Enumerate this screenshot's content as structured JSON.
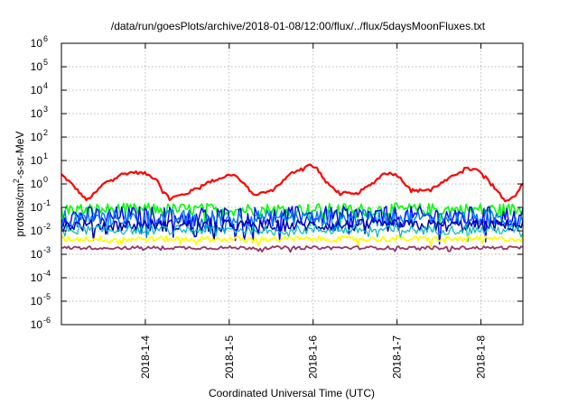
{
  "chart_data": {
    "type": "line",
    "title": "/data/run/goesPlots/archive/2018-01-08/12:00/flux/../flux/5daysMoonFluxes.txt",
    "xlabel": "Coordinated Universal Time (UTC)",
    "ylabel_parts": [
      "protons/cm",
      "2",
      "-s-sr-MeV"
    ],
    "y_scale": "log",
    "ylim_exponent": [
      -6,
      6
    ],
    "y_tick_exponents": [
      -6,
      -5,
      -4,
      -3,
      -2,
      -1,
      0,
      1,
      2,
      3,
      4,
      5,
      6
    ],
    "y_tick_base": "10",
    "xlim_days": [
      0,
      5.5
    ],
    "x_ticks": [
      {
        "day": 1,
        "label": "2018-1-4"
      },
      {
        "day": 2,
        "label": "2018-1-5"
      },
      {
        "day": 3,
        "label": "2018-1-6"
      },
      {
        "day": 4,
        "label": "2018-1-7"
      },
      {
        "day": 5,
        "label": "2018-1-8"
      }
    ],
    "grid": true,
    "series": [
      {
        "color": "#ff0000",
        "width": 2.2,
        "noise": 0.06,
        "points": [
          [
            0,
            2.5
          ],
          [
            0.1,
            1.2
          ],
          [
            0.2,
            0.5
          ],
          [
            0.3,
            0.2
          ],
          [
            0.4,
            0.4
          ],
          [
            0.5,
            1.0
          ],
          [
            0.7,
            2.5
          ],
          [
            0.85,
            3.2
          ],
          [
            1.0,
            2.8
          ],
          [
            1.15,
            1.5
          ],
          [
            1.2,
            0.5
          ],
          [
            1.3,
            0.25
          ],
          [
            1.5,
            0.4
          ],
          [
            1.7,
            1.0
          ],
          [
            1.9,
            1.8
          ],
          [
            2.05,
            2.8
          ],
          [
            2.15,
            1.2
          ],
          [
            2.3,
            0.35
          ],
          [
            2.5,
            0.5
          ],
          [
            2.6,
            1.0
          ],
          [
            2.75,
            3.0
          ],
          [
            2.95,
            6.5
          ],
          [
            3.05,
            4.5
          ],
          [
            3.15,
            1.2
          ],
          [
            3.3,
            0.45
          ],
          [
            3.5,
            0.35
          ],
          [
            3.7,
            1.0
          ],
          [
            3.85,
            3.0
          ],
          [
            4.0,
            2.5
          ],
          [
            4.1,
            1.0
          ],
          [
            4.2,
            0.5
          ],
          [
            4.4,
            0.6
          ],
          [
            4.6,
            1.5
          ],
          [
            4.8,
            4.5
          ],
          [
            4.95,
            4.0
          ],
          [
            5.05,
            2.0
          ],
          [
            5.2,
            0.5
          ],
          [
            5.3,
            0.2
          ],
          [
            5.4,
            0.3
          ],
          [
            5.5,
            1.0
          ]
        ]
      },
      {
        "color": "#00ff00",
        "width": 1.6,
        "noise": 0.28,
        "points": [
          [
            0,
            0.08
          ],
          [
            5.5,
            0.08
          ]
        ]
      },
      {
        "color": "#0000ff",
        "width": 1.4,
        "noise": 0.45,
        "points": [
          [
            0,
            0.04
          ],
          [
            5.5,
            0.04
          ]
        ]
      },
      {
        "color": "#0077ff",
        "width": 1.4,
        "noise": 0.35,
        "points": [
          [
            0,
            0.035
          ],
          [
            5.5,
            0.035
          ]
        ]
      },
      {
        "color": "#0000aa",
        "width": 1.5,
        "noise": 0.25,
        "points": [
          [
            0,
            0.017
          ],
          [
            5.5,
            0.017
          ]
        ]
      },
      {
        "color": "#00bbbb",
        "width": 1.2,
        "noise": 0.2,
        "points": [
          [
            0,
            0.011
          ],
          [
            5.5,
            0.011
          ]
        ]
      },
      {
        "color": "#ffff00",
        "width": 1.8,
        "noise": 0.12,
        "points": [
          [
            0,
            0.0045
          ],
          [
            5.5,
            0.0045
          ]
        ]
      },
      {
        "color": "#993366",
        "width": 1.8,
        "noise": 0.07,
        "points": [
          [
            0,
            0.0019
          ],
          [
            5.5,
            0.0019
          ]
        ]
      }
    ]
  }
}
